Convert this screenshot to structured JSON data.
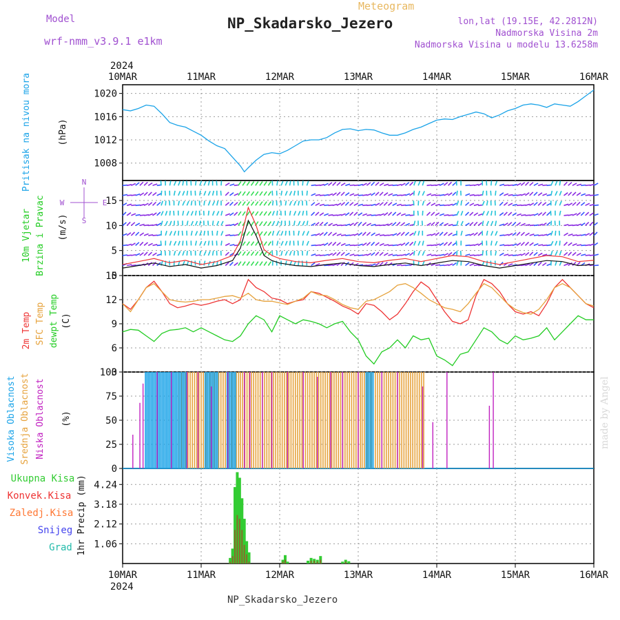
{
  "header": {
    "model_label": "Model",
    "model_name": "wrf-nmm_v3.9.1 e1km",
    "meteogram_label": "Meteogram",
    "station_title": "NP_Skadarsko_Jezero",
    "lonlat": "lon,lat (19.15E, 42.2812N)",
    "elevation": "Nadmorska Visina 2m",
    "model_elevation": "Nadmorska Visina u modelu 13.6258m",
    "footer_station": "NP_Skadarsko_Jezero",
    "watermark": "made by Angel"
  },
  "colors": {
    "pressure": "#1aa3e8",
    "wind_purple": "#8a2be2",
    "wind_cyan": "#22c3d8",
    "wind_blue": "#3355ff",
    "wind_green": "#33dd55",
    "t2m": "#ee3333",
    "sfc": "#e6a23c",
    "dewpt": "#22cc22",
    "cloud_high": "#1aa3e8",
    "cloud_mid": "#e6a23c",
    "cloud_low": "#c020c0",
    "precip_total": "#33cc33",
    "precip_conv": "#ee3333",
    "precip_frozen": "#ff7733",
    "precip_snow": "#4444ee",
    "precip_graupel": "#22bbaa"
  },
  "chart_data": {
    "type": "meteogram",
    "x_axis": {
      "year": "2024",
      "ticks": [
        "10MAR",
        "11MAR",
        "12MAR",
        "13MAR",
        "14MAR",
        "15MAR",
        "16MAR"
      ],
      "range_days": [
        0,
        6
      ]
    },
    "panels": {
      "pressure": {
        "type": "line",
        "ylabel": "Pritisak na nivou mora",
        "unit": "(hPa)",
        "ylim": [
          1005,
          1021.5
        ],
        "yticks": [
          1008,
          1012,
          1016,
          1020
        ],
        "x": [
          0,
          0.1,
          0.2,
          0.3,
          0.4,
          0.5,
          0.6,
          0.7,
          0.8,
          0.9,
          1.0,
          1.1,
          1.2,
          1.3,
          1.4,
          1.5,
          1.55,
          1.6,
          1.7,
          1.8,
          1.9,
          2.0,
          2.1,
          2.2,
          2.3,
          2.4,
          2.5,
          2.6,
          2.7,
          2.8,
          2.9,
          3.0,
          3.1,
          3.2,
          3.3,
          3.4,
          3.5,
          3.6,
          3.7,
          3.8,
          3.9,
          4.0,
          4.1,
          4.2,
          4.3,
          4.4,
          4.5,
          4.6,
          4.7,
          4.8,
          4.9,
          5.0,
          5.1,
          5.2,
          5.3,
          5.4,
          5.5,
          5.6,
          5.7,
          5.8,
          5.9,
          6.0
        ],
        "values": [
          1017.2,
          1017.0,
          1017.4,
          1018.0,
          1017.8,
          1016.5,
          1015.0,
          1014.5,
          1014.2,
          1013.5,
          1012.8,
          1011.8,
          1011.0,
          1010.5,
          1009.0,
          1007.5,
          1006.5,
          1007.2,
          1008.5,
          1009.5,
          1009.8,
          1009.6,
          1010.2,
          1011.0,
          1011.8,
          1012.0,
          1012.0,
          1012.4,
          1013.2,
          1013.8,
          1013.9,
          1013.6,
          1013.8,
          1013.7,
          1013.2,
          1012.8,
          1012.8,
          1013.2,
          1013.8,
          1014.2,
          1014.8,
          1015.4,
          1015.6,
          1015.5,
          1016.0,
          1016.4,
          1016.8,
          1016.5,
          1015.8,
          1016.3,
          1017.0,
          1017.4,
          1018.0,
          1018.2,
          1018.0,
          1017.6,
          1018.2,
          1018.0,
          1017.8,
          1018.6,
          1019.6,
          1020.6
        ]
      },
      "wind": {
        "type": "barbs",
        "ylabel": "10m Vjetar",
        "ylabel2": "Brzina i Pravac",
        "unit": "(m/s)",
        "compass": {
          "n": "N",
          "s": "S",
          "e": "E",
          "w": "W"
        },
        "ylim": [
          0,
          19
        ],
        "yticks": [
          0,
          5,
          10,
          15
        ],
        "speed_x": [
          0,
          0.2,
          0.4,
          0.6,
          0.8,
          1.0,
          1.2,
          1.4,
          1.5,
          1.6,
          1.7,
          1.8,
          1.9,
          2.0,
          2.2,
          2.4,
          2.6,
          2.8,
          3.0,
          3.2,
          3.4,
          3.6,
          3.8,
          4.0,
          4.2,
          4.4,
          4.6,
          4.8,
          5.0,
          5.2,
          5.4,
          5.6,
          5.8,
          6.0
        ],
        "speed_values": [
          1.5,
          2.0,
          2.5,
          1.8,
          2.2,
          1.5,
          2.0,
          3.0,
          5.5,
          11.0,
          8.0,
          4.0,
          3.0,
          2.5,
          2.0,
          1.8,
          2.2,
          2.5,
          2.0,
          1.8,
          2.2,
          2.5,
          2.0,
          2.5,
          3.0,
          2.8,
          2.0,
          1.5,
          2.0,
          2.5,
          3.0,
          2.8,
          2.0,
          2.2
        ],
        "arrow_rows": [
          2,
          4,
          6,
          8,
          10,
          12,
          14,
          16,
          18
        ]
      },
      "temperature": {
        "type": "line",
        "ylabel": "2m Temp",
        "ylabel2": "SFC Temp",
        "ylabel3": "dewpt Temp",
        "unit": "(C)",
        "ylim": [
          3,
          15
        ],
        "yticks": [
          3,
          6,
          9,
          12,
          15
        ],
        "x": [
          0,
          0.1,
          0.2,
          0.3,
          0.4,
          0.5,
          0.6,
          0.7,
          0.8,
          0.9,
          1.0,
          1.1,
          1.2,
          1.3,
          1.4,
          1.5,
          1.6,
          1.7,
          1.8,
          1.9,
          2.0,
          2.1,
          2.2,
          2.3,
          2.4,
          2.5,
          2.6,
          2.7,
          2.8,
          2.9,
          3.0,
          3.1,
          3.2,
          3.3,
          3.4,
          3.5,
          3.6,
          3.7,
          3.8,
          3.9,
          4.0,
          4.1,
          4.2,
          4.3,
          4.4,
          4.5,
          4.6,
          4.7,
          4.8,
          4.9,
          5.0,
          5.1,
          5.2,
          5.3,
          5.4,
          5.5,
          5.6,
          5.7,
          5.8,
          5.9,
          6.0
        ],
        "series": [
          {
            "name": "2m Temp",
            "values": [
              11.5,
              10.8,
              12.0,
              13.5,
              14.3,
              13.0,
              11.5,
              11.0,
              11.2,
              11.5,
              11.3,
              11.5,
              11.8,
              12.0,
              11.5,
              12.0,
              14.5,
              13.5,
              13.0,
              12.2,
              12.0,
              11.5,
              11.8,
              12.0,
              13.0,
              12.8,
              12.3,
              11.8,
              11.2,
              10.8,
              10.2,
              11.5,
              11.3,
              10.5,
              9.5,
              10.2,
              11.5,
              13.0,
              14.2,
              13.5,
              12.0,
              10.5,
              9.3,
              9.0,
              9.5,
              12.5,
              14.5,
              14.0,
              13.0,
              11.5,
              10.5,
              10.2,
              10.5,
              10.0,
              11.5,
              13.5,
              14.5,
              13.5,
              12.5,
              11.5,
              11.0
            ]
          },
          {
            "name": "SFC Temp",
            "values": [
              11.5,
              10.5,
              12.0,
              13.5,
              14.0,
              13.0,
              12.0,
              11.8,
              11.7,
              11.8,
              12.0,
              12.0,
              12.2,
              12.4,
              12.5,
              12.2,
              12.8,
              12.0,
              11.8,
              11.8,
              11.6,
              11.4,
              11.8,
              12.2,
              13.0,
              12.6,
              12.5,
              12.0,
              11.4,
              11.0,
              10.8,
              11.8,
              12.0,
              12.5,
              13.0,
              13.8,
              14.0,
              13.5,
              12.8,
              12.0,
              11.5,
              11.0,
              10.8,
              10.5,
              11.5,
              12.8,
              14.0,
              13.5,
              12.5,
              11.5,
              10.8,
              10.4,
              10.2,
              10.8,
              12.0,
              13.5,
              14.0,
              13.5,
              12.5,
              11.5,
              11.2
            ]
          },
          {
            "name": "dewpt Temp",
            "values": [
              8.0,
              8.3,
              8.2,
              7.5,
              6.8,
              7.8,
              8.2,
              8.3,
              8.5,
              8.0,
              8.5,
              8.0,
              7.5,
              7.0,
              6.8,
              7.5,
              9.0,
              10.0,
              9.5,
              8.0,
              10.0,
              9.5,
              9.0,
              9.5,
              9.3,
              9.0,
              8.5,
              9.0,
              9.3,
              8.0,
              7.0,
              5.0,
              4.0,
              5.5,
              6.0,
              7.0,
              6.0,
              7.5,
              7.0,
              7.2,
              5.0,
              4.5,
              3.8,
              5.2,
              5.5,
              7.0,
              8.5,
              8.0,
              7.0,
              6.5,
              7.5,
              7.0,
              7.2,
              7.5,
              8.5,
              7.0,
              8.0,
              9.0,
              10.0,
              9.5,
              9.5
            ]
          }
        ]
      },
      "clouds": {
        "type": "bar",
        "ylabel": "Visoka Oblacnost",
        "ylabel2": "Srednja Oblacnost",
        "ylabel3": "Niska Oblacnost",
        "unit": "(%)",
        "ylim": [
          0,
          100
        ],
        "yticks": [
          0,
          25,
          50,
          75,
          100
        ],
        "high_spans": [
          [
            0.29,
            0.82
          ],
          [
            1.05,
            1.22
          ],
          [
            1.33,
            1.45
          ],
          [
            3.1,
            3.2
          ]
        ],
        "mid_spans": [
          [
            0.72,
            1.5
          ],
          [
            1.5,
            2.3
          ],
          [
            2.3,
            3.05
          ],
          [
            3.05,
            3.85
          ]
        ],
        "low_bars": [
          [
            0.13,
            35
          ],
          [
            0.22,
            68
          ],
          [
            0.26,
            88
          ],
          [
            0.44,
            100
          ],
          [
            0.62,
            100
          ],
          [
            0.82,
            100
          ],
          [
            0.96,
            100
          ],
          [
            1.13,
            85
          ],
          [
            1.34,
            100
          ],
          [
            1.55,
            100
          ],
          [
            1.62,
            100
          ],
          [
            1.78,
            100
          ],
          [
            1.9,
            100
          ],
          [
            2.1,
            100
          ],
          [
            2.3,
            100
          ],
          [
            2.48,
            95
          ],
          [
            2.65,
            100
          ],
          [
            2.8,
            100
          ],
          [
            3.0,
            100
          ],
          [
            3.3,
            100
          ],
          [
            3.5,
            100
          ],
          [
            3.82,
            85
          ],
          [
            3.95,
            48
          ],
          [
            4.13,
            100
          ],
          [
            4.67,
            65
          ],
          [
            4.72,
            100
          ]
        ]
      },
      "precip": {
        "type": "bar",
        "ylabel": "1hr Precip (mm)",
        "legend": [
          "Ukupna Kisa",
          "Konvek.Kisa",
          "Zaledj.Kisa",
          "Snijeg",
          "Grad"
        ],
        "ylim": [
          0,
          5.1
        ],
        "yticks": [
          1.06,
          2.12,
          3.18,
          4.24
        ],
        "x": [
          1.37,
          1.4,
          1.43,
          1.46,
          1.49,
          1.52,
          1.55,
          1.58,
          1.61,
          2.04,
          2.07,
          2.1,
          2.36,
          2.4,
          2.44,
          2.48,
          2.52,
          2.8,
          2.84,
          2.88
        ],
        "total": [
          0.3,
          0.8,
          4.1,
          4.9,
          4.6,
          3.5,
          2.4,
          1.2,
          0.6,
          0.2,
          0.45,
          0.1,
          0.15,
          0.3,
          0.25,
          0.2,
          0.4,
          0.1,
          0.2,
          0.12
        ],
        "conv": [
          0.1,
          0.4,
          1.8,
          2.6,
          2.4,
          1.8,
          1.0,
          0.5,
          0.1,
          0.1,
          0.2,
          0.0,
          0.0,
          0.15,
          0.15,
          0.1,
          0.2,
          0.0,
          0.1,
          0.0
        ]
      }
    }
  }
}
